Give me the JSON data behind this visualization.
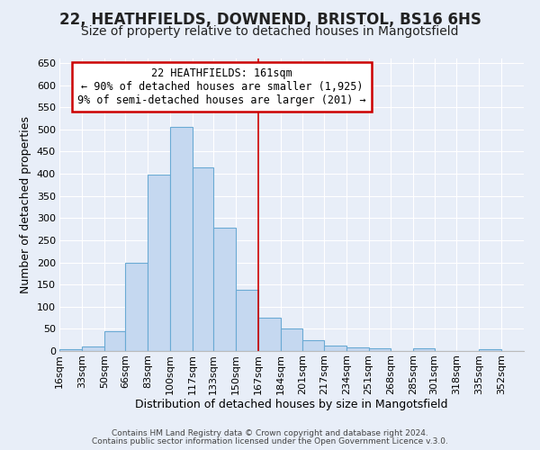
{
  "title": "22, HEATHFIELDS, DOWNEND, BRISTOL, BS16 6HS",
  "subtitle": "Size of property relative to detached houses in Mangotsfield",
  "xlabel": "Distribution of detached houses by size in Mangotsfield",
  "ylabel": "Number of detached properties",
  "annotation_line1": "22 HEATHFIELDS: 161sqm",
  "annotation_line2": "← 90% of detached houses are smaller (1,925)",
  "annotation_line3": "9% of semi-detached houses are larger (201) →",
  "categories": [
    "16sqm",
    "33sqm",
    "50sqm",
    "66sqm",
    "83sqm",
    "100sqm",
    "117sqm",
    "133sqm",
    "150sqm",
    "167sqm",
    "184sqm",
    "201sqm",
    "217sqm",
    "234sqm",
    "251sqm",
    "268sqm",
    "285sqm",
    "301sqm",
    "318sqm",
    "335sqm",
    "352sqm"
  ],
  "bin_edges": [
    16,
    33,
    50,
    66,
    83,
    100,
    117,
    133,
    150,
    167,
    184,
    201,
    217,
    234,
    251,
    268,
    285,
    301,
    318,
    335,
    352,
    369
  ],
  "values": [
    5,
    10,
    44,
    200,
    398,
    505,
    415,
    278,
    138,
    75,
    51,
    25,
    12,
    8,
    7,
    0,
    6,
    0,
    0,
    5,
    0
  ],
  "bar_color": "#c5d8f0",
  "bar_edge_color": "#6aaad4",
  "background_color": "#e8eef8",
  "grid_color": "#ffffff",
  "vline_color": "#cc0000",
  "vline_x_index": 9,
  "annotation_box_color": "#ffffff",
  "annotation_box_edge": "#cc0000",
  "ylim": [
    0,
    660
  ],
  "yticks": [
    0,
    50,
    100,
    150,
    200,
    250,
    300,
    350,
    400,
    450,
    500,
    550,
    600,
    650
  ],
  "title_fontsize": 12,
  "subtitle_fontsize": 10,
  "xlabel_fontsize": 9,
  "ylabel_fontsize": 9,
  "tick_fontsize": 8,
  "ann_fontsize": 8.5,
  "footnote1": "Contains HM Land Registry data © Crown copyright and database right 2024.",
  "footnote2": "Contains public sector information licensed under the Open Government Licence v.3.0."
}
